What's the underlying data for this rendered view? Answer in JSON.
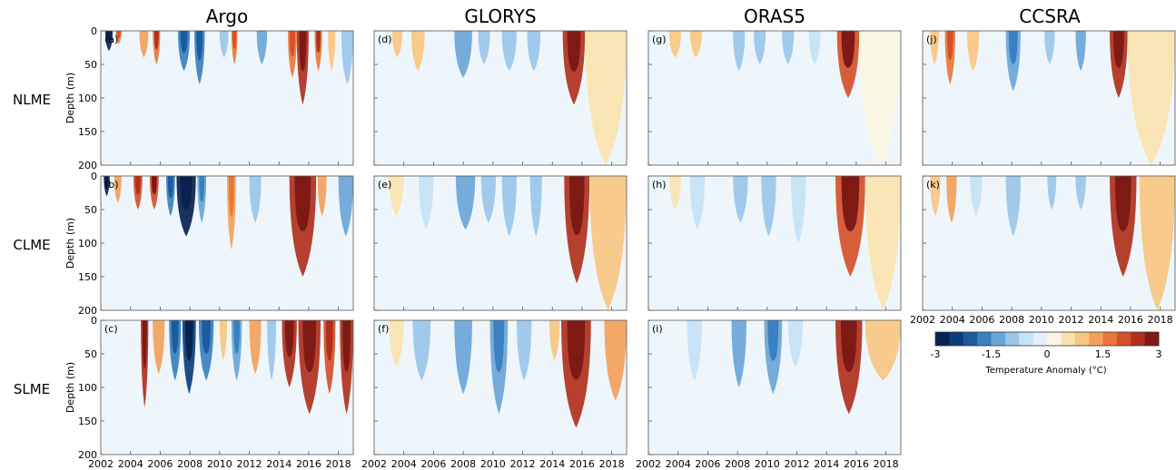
{
  "columns": [
    "Argo",
    "GLORYS",
    "ORAS5",
    "CCSRA"
  ],
  "rows": [
    "NLME",
    "CLME",
    "SLME"
  ],
  "ylabel": "Depth (m)",
  "colorbar": {
    "label": "Temperature Anomaly (°C)",
    "ticks": [
      "-3",
      "-1.5",
      "0",
      "1.5",
      "3"
    ],
    "range": [
      -3,
      3
    ],
    "colors": [
      "#08214f",
      "#0d3d7a",
      "#1a5c9e",
      "#3b80c0",
      "#6aa5d8",
      "#9ac6ea",
      "#c6e2f5",
      "#e4f1fa",
      "#fbf6e2",
      "#fbe3b0",
      "#f8c682",
      "#f3a15a",
      "#e9773a",
      "#d5502a",
      "#b0301e",
      "#7e1a13"
    ]
  },
  "chart_data": {
    "type": "heatmap",
    "x_ticks": [
      "2002",
      "2004",
      "2006",
      "2008",
      "2010",
      "2012",
      "2014",
      "2016",
      "2018"
    ],
    "y_ticks": [
      "0",
      "50",
      "100",
      "150",
      "200"
    ],
    "xlim": [
      2002,
      2019
    ],
    "ylim": [
      0,
      200
    ],
    "panels": [
      {
        "id": "a",
        "label": "(a)",
        "column": "Argo",
        "row": "NLME",
        "events": [
          [
            2002.3,
            2002.8,
            30,
            -3.0
          ],
          [
            2003.0,
            2003.4,
            20,
            1.5
          ],
          [
            2004.6,
            2005.2,
            40,
            1.2
          ],
          [
            2005.5,
            2006.0,
            50,
            1.8
          ],
          [
            2007.2,
            2008.0,
            60,
            -1.8
          ],
          [
            2008.3,
            2009.0,
            80,
            -1.6
          ],
          [
            2010.0,
            2010.6,
            40,
            -1.0
          ],
          [
            2010.8,
            2011.2,
            50,
            1.5
          ],
          [
            2012.5,
            2013.2,
            50,
            -1.2
          ],
          [
            2014.6,
            2015.2,
            70,
            1.6
          ],
          [
            2015.2,
            2016.0,
            110,
            2.5
          ],
          [
            2016.4,
            2016.9,
            60,
            1.8
          ],
          [
            2017.3,
            2017.8,
            60,
            1.0
          ],
          [
            2018.2,
            2019.0,
            80,
            -1.0
          ]
        ]
      },
      {
        "id": "b",
        "label": "(b)",
        "column": "Argo",
        "row": "CLME",
        "events": [
          [
            2002.2,
            2002.6,
            30,
            -2.8
          ],
          [
            2002.9,
            2003.4,
            40,
            1.2
          ],
          [
            2004.2,
            2004.8,
            50,
            2.0
          ],
          [
            2005.3,
            2005.9,
            50,
            2.2
          ],
          [
            2006.4,
            2007.0,
            60,
            -1.8
          ],
          [
            2007.1,
            2008.4,
            90,
            -3.0
          ],
          [
            2008.5,
            2009.1,
            70,
            -1.4
          ],
          [
            2010.5,
            2011.1,
            110,
            1.4
          ],
          [
            2012.0,
            2012.8,
            70,
            -1.0
          ],
          [
            2014.7,
            2016.5,
            150,
            2.6
          ],
          [
            2016.6,
            2017.2,
            60,
            1.2
          ],
          [
            2018.0,
            2019.0,
            90,
            -1.2
          ]
        ]
      },
      {
        "id": "c",
        "label": "(c)",
        "column": "Argo",
        "row": "SLME",
        "events": [
          [
            2004.7,
            2005.2,
            130,
            2.4
          ],
          [
            2005.5,
            2006.3,
            80,
            1.2
          ],
          [
            2006.6,
            2007.4,
            90,
            -1.6
          ],
          [
            2007.5,
            2008.4,
            110,
            -2.4
          ],
          [
            2008.6,
            2009.6,
            90,
            -1.8
          ],
          [
            2010.0,
            2010.5,
            60,
            1.0
          ],
          [
            2010.8,
            2011.5,
            90,
            -1.4
          ],
          [
            2012.0,
            2012.8,
            80,
            1.2
          ],
          [
            2013.2,
            2013.8,
            90,
            -1.0
          ],
          [
            2014.2,
            2015.2,
            100,
            2.4
          ],
          [
            2015.3,
            2016.8,
            140,
            2.6
          ],
          [
            2017.0,
            2017.8,
            110,
            2.0
          ],
          [
            2018.1,
            2019.0,
            140,
            2.6
          ]
        ]
      },
      {
        "id": "d",
        "label": "(d)",
        "column": "GLORYS",
        "row": "NLME",
        "events": [
          [
            2003.2,
            2003.9,
            40,
            0.8
          ],
          [
            2004.5,
            2005.4,
            60,
            1.0
          ],
          [
            2007.4,
            2008.6,
            70,
            -1.2
          ],
          [
            2009.0,
            2009.8,
            50,
            -0.8
          ],
          [
            2010.6,
            2011.6,
            60,
            -0.8
          ],
          [
            2012.3,
            2013.2,
            60,
            -0.9
          ],
          [
            2014.7,
            2016.2,
            110,
            2.4
          ],
          [
            2016.2,
            2019.0,
            200,
            0.6
          ]
        ]
      },
      {
        "id": "e",
        "label": "(e)",
        "column": "GLORYS",
        "row": "CLME",
        "events": [
          [
            2003.0,
            2004.0,
            60,
            0.7
          ],
          [
            2005.0,
            2006.0,
            80,
            -0.7
          ],
          [
            2007.5,
            2008.8,
            80,
            -1.2
          ],
          [
            2009.2,
            2010.2,
            70,
            -0.9
          ],
          [
            2010.6,
            2011.6,
            90,
            -0.8
          ],
          [
            2012.5,
            2013.3,
            90,
            -0.8
          ],
          [
            2014.8,
            2016.5,
            160,
            2.4
          ],
          [
            2016.5,
            2019.0,
            200,
            0.8
          ]
        ]
      },
      {
        "id": "f",
        "label": "(f)",
        "column": "GLORYS",
        "row": "SLME",
        "events": [
          [
            2003.0,
            2004.0,
            70,
            0.6
          ],
          [
            2004.6,
            2005.8,
            90,
            -0.8
          ],
          [
            2007.4,
            2008.6,
            110,
            -1.2
          ],
          [
            2009.8,
            2011.0,
            140,
            -1.4
          ],
          [
            2011.6,
            2012.6,
            90,
            -0.8
          ],
          [
            2013.8,
            2014.5,
            60,
            0.9
          ],
          [
            2014.6,
            2016.6,
            160,
            2.6
          ],
          [
            2017.5,
            2019.0,
            120,
            1.2
          ]
        ]
      },
      {
        "id": "g",
        "label": "(g)",
        "column": "ORAS5",
        "row": "NLME",
        "events": [
          [
            2003.4,
            2004.2,
            40,
            0.8
          ],
          [
            2004.8,
            2005.6,
            40,
            0.9
          ],
          [
            2007.7,
            2008.5,
            60,
            -1.1
          ],
          [
            2009.1,
            2009.9,
            50,
            -0.8
          ],
          [
            2011.0,
            2011.8,
            50,
            -0.8
          ],
          [
            2012.8,
            2013.6,
            50,
            -0.7
          ],
          [
            2014.7,
            2016.2,
            100,
            2.2
          ],
          [
            2016.2,
            2019.0,
            200,
            0.3
          ]
        ]
      },
      {
        "id": "h",
        "label": "(h)",
        "column": "ORAS5",
        "row": "CLME",
        "events": [
          [
            2003.4,
            2004.2,
            50,
            0.7
          ],
          [
            2004.8,
            2005.8,
            80,
            -0.6
          ],
          [
            2007.7,
            2008.7,
            70,
            -1.1
          ],
          [
            2009.6,
            2010.6,
            90,
            -0.9
          ],
          [
            2011.6,
            2012.6,
            100,
            -0.7
          ],
          [
            2014.6,
            2016.6,
            150,
            2.2
          ],
          [
            2016.6,
            2019.0,
            200,
            0.6
          ]
        ]
      },
      {
        "id": "i",
        "label": "(i)",
        "column": "ORAS5",
        "row": "SLME",
        "events": [
          [
            2004.6,
            2005.6,
            90,
            -0.7
          ],
          [
            2007.6,
            2008.6,
            100,
            -1.2
          ],
          [
            2009.8,
            2011.0,
            110,
            -1.3
          ],
          [
            2011.4,
            2012.4,
            70,
            -0.7
          ],
          [
            2014.6,
            2016.4,
            140,
            2.4
          ],
          [
            2016.6,
            2019.0,
            90,
            0.8
          ]
        ]
      },
      {
        "id": "j",
        "label": "(j)",
        "column": "CCSRA",
        "row": "NLME",
        "events": [
          [
            2002.5,
            2003.1,
            50,
            1.0
          ],
          [
            2003.5,
            2004.2,
            80,
            1.5
          ],
          [
            2005.0,
            2005.8,
            60,
            1.0
          ],
          [
            2007.6,
            2008.6,
            90,
            -1.5
          ],
          [
            2010.2,
            2010.9,
            50,
            -0.8
          ],
          [
            2012.3,
            2013.0,
            60,
            -1.2
          ],
          [
            2014.6,
            2015.8,
            100,
            2.6
          ],
          [
            2015.8,
            2019.0,
            200,
            0.7
          ]
        ]
      },
      {
        "id": "k",
        "label": "(k)",
        "column": "CCSRA",
        "row": "CLME",
        "events": [
          [
            2002.5,
            2003.2,
            60,
            0.8
          ],
          [
            2003.6,
            2004.3,
            70,
            1.2
          ],
          [
            2005.2,
            2006.0,
            60,
            -0.7
          ],
          [
            2007.6,
            2008.6,
            90,
            -1.0
          ],
          [
            2010.4,
            2011.0,
            50,
            -0.8
          ],
          [
            2012.3,
            2013.0,
            50,
            -0.9
          ],
          [
            2014.6,
            2016.4,
            150,
            2.4
          ],
          [
            2016.6,
            2019.0,
            200,
            0.8
          ]
        ]
      }
    ]
  }
}
